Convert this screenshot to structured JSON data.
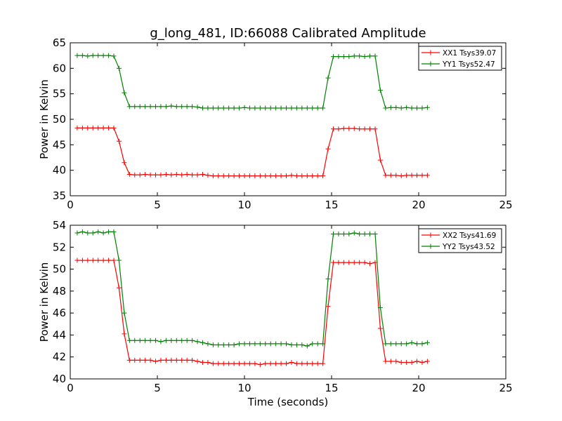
{
  "title": "g_long_481, ID:66088 Calibrated Amplitude",
  "xlabel": "Time (seconds)",
  "chart_data": [
    {
      "type": "line",
      "title": "g_long_481, ID:66088 Calibrated Amplitude",
      "xlabel": "",
      "ylabel": "Power in Kelvin",
      "xlim": [
        0,
        25
      ],
      "ylim": [
        35,
        65
      ],
      "xticks": [
        0,
        5,
        10,
        15,
        20,
        25
      ],
      "yticks": [
        35,
        40,
        45,
        50,
        55,
        60,
        65
      ],
      "grid": false,
      "legend": "top-right",
      "x": [
        0.4,
        0.7,
        1.0,
        1.3,
        1.6,
        1.9,
        2.2,
        2.5,
        2.8,
        3.1,
        3.4,
        3.7,
        4.0,
        4.3,
        4.6,
        4.9,
        5.2,
        5.5,
        5.8,
        6.1,
        6.4,
        6.7,
        7.0,
        7.3,
        7.6,
        7.9,
        8.2,
        8.5,
        8.8,
        9.1,
        9.4,
        9.7,
        10.0,
        10.3,
        10.6,
        10.9,
        11.2,
        11.5,
        11.8,
        12.1,
        12.4,
        12.7,
        13.0,
        13.3,
        13.6,
        13.9,
        14.2,
        14.5,
        14.8,
        15.1,
        15.4,
        15.7,
        16.0,
        16.3,
        16.6,
        16.9,
        17.2,
        17.5,
        17.8,
        18.1,
        18.4,
        18.7,
        19.0,
        19.3,
        19.6,
        19.9,
        20.2,
        20.5
      ],
      "series": [
        {
          "name": "XX1 Tsys39.07",
          "color": "#ff0000",
          "values": [
            48.3,
            48.3,
            48.3,
            48.3,
            48.3,
            48.3,
            48.3,
            48.3,
            45.7,
            41.5,
            39.2,
            39.1,
            39.1,
            39.2,
            39.1,
            39.1,
            39.1,
            39.2,
            39.1,
            39.2,
            39.1,
            39.2,
            39.1,
            39.1,
            39.2,
            39.0,
            38.9,
            38.9,
            38.9,
            38.9,
            38.9,
            38.9,
            38.9,
            38.9,
            38.9,
            38.9,
            38.9,
            38.9,
            38.9,
            38.9,
            38.9,
            39.0,
            38.9,
            38.9,
            38.9,
            38.9,
            38.9,
            38.9,
            44.2,
            48.1,
            48.1,
            48.2,
            48.2,
            48.2,
            48.1,
            48.1,
            48.1,
            48.1,
            42.0,
            39.0,
            39.0,
            39.0,
            38.9,
            39.0,
            39.0,
            39.0,
            39.0,
            39.0
          ]
        },
        {
          "name": "YY1 Tsys52.47",
          "color": "#008000",
          "values": [
            62.5,
            62.5,
            62.4,
            62.5,
            62.5,
            62.5,
            62.5,
            62.4,
            60.0,
            55.2,
            52.5,
            52.5,
            52.5,
            52.5,
            52.5,
            52.5,
            52.5,
            52.5,
            52.6,
            52.5,
            52.5,
            52.5,
            52.5,
            52.4,
            52.2,
            52.2,
            52.2,
            52.2,
            52.2,
            52.2,
            52.2,
            52.2,
            52.3,
            52.2,
            52.2,
            52.2,
            52.2,
            52.2,
            52.2,
            52.2,
            52.2,
            52.2,
            52.2,
            52.2,
            52.2,
            52.2,
            52.2,
            52.2,
            58.1,
            62.3,
            62.3,
            62.3,
            62.3,
            62.4,
            62.4,
            62.3,
            62.4,
            62.4,
            55.7,
            52.2,
            52.3,
            52.3,
            52.2,
            52.3,
            52.2,
            52.2,
            52.2,
            52.3
          ]
        }
      ]
    },
    {
      "type": "line",
      "title": "",
      "xlabel": "Time (seconds)",
      "ylabel": "Power in Kelvin",
      "xlim": [
        0,
        25
      ],
      "ylim": [
        40,
        54
      ],
      "xticks": [
        0,
        5,
        10,
        15,
        20,
        25
      ],
      "yticks": [
        40,
        42,
        44,
        46,
        48,
        50,
        52,
        54
      ],
      "grid": false,
      "legend": "top-right",
      "x": [
        0.4,
        0.7,
        1.0,
        1.3,
        1.6,
        1.9,
        2.2,
        2.5,
        2.8,
        3.1,
        3.4,
        3.7,
        4.0,
        4.3,
        4.6,
        4.9,
        5.2,
        5.5,
        5.8,
        6.1,
        6.4,
        6.7,
        7.0,
        7.3,
        7.6,
        7.9,
        8.2,
        8.5,
        8.8,
        9.1,
        9.4,
        9.7,
        10.0,
        10.3,
        10.6,
        10.9,
        11.2,
        11.5,
        11.8,
        12.1,
        12.4,
        12.7,
        13.0,
        13.3,
        13.6,
        13.9,
        14.2,
        14.5,
        14.8,
        15.1,
        15.4,
        15.7,
        16.0,
        16.3,
        16.6,
        16.9,
        17.2,
        17.5,
        17.8,
        18.1,
        18.4,
        18.7,
        19.0,
        19.3,
        19.6,
        19.9,
        20.2,
        20.5
      ],
      "series": [
        {
          "name": "XX2 Tsys41.69",
          "color": "#ff0000",
          "values": [
            50.8,
            50.8,
            50.8,
            50.8,
            50.8,
            50.8,
            50.8,
            50.8,
            48.3,
            44.1,
            41.7,
            41.7,
            41.7,
            41.7,
            41.7,
            41.6,
            41.7,
            41.7,
            41.7,
            41.7,
            41.7,
            41.7,
            41.7,
            41.6,
            41.5,
            41.5,
            41.4,
            41.4,
            41.4,
            41.4,
            41.4,
            41.4,
            41.4,
            41.4,
            41.4,
            41.3,
            41.4,
            41.4,
            41.4,
            41.4,
            41.4,
            41.5,
            41.4,
            41.4,
            41.4,
            41.4,
            41.4,
            41.4,
            46.6,
            50.6,
            50.6,
            50.6,
            50.6,
            50.6,
            50.6,
            50.6,
            50.5,
            50.6,
            44.6,
            41.6,
            41.6,
            41.6,
            41.5,
            41.5,
            41.5,
            41.6,
            41.5,
            41.6
          ]
        },
        {
          "name": "YY2 Tsys43.52",
          "color": "#008000",
          "values": [
            53.3,
            53.4,
            53.3,
            53.3,
            53.4,
            53.3,
            53.4,
            53.4,
            50.8,
            46.0,
            43.5,
            43.5,
            43.5,
            43.5,
            43.5,
            43.5,
            43.4,
            43.5,
            43.5,
            43.5,
            43.5,
            43.5,
            43.5,
            43.4,
            43.3,
            43.2,
            43.1,
            43.1,
            43.1,
            43.1,
            43.1,
            43.2,
            43.2,
            43.2,
            43.2,
            43.2,
            43.2,
            43.2,
            43.2,
            43.2,
            43.2,
            43.1,
            43.1,
            43.1,
            43.0,
            43.2,
            43.2,
            43.2,
            49.1,
            53.2,
            53.2,
            53.2,
            53.2,
            53.3,
            53.2,
            53.2,
            53.2,
            53.2,
            46.5,
            43.2,
            43.2,
            43.2,
            43.2,
            43.2,
            43.3,
            43.2,
            43.2,
            43.3
          ]
        }
      ]
    }
  ]
}
